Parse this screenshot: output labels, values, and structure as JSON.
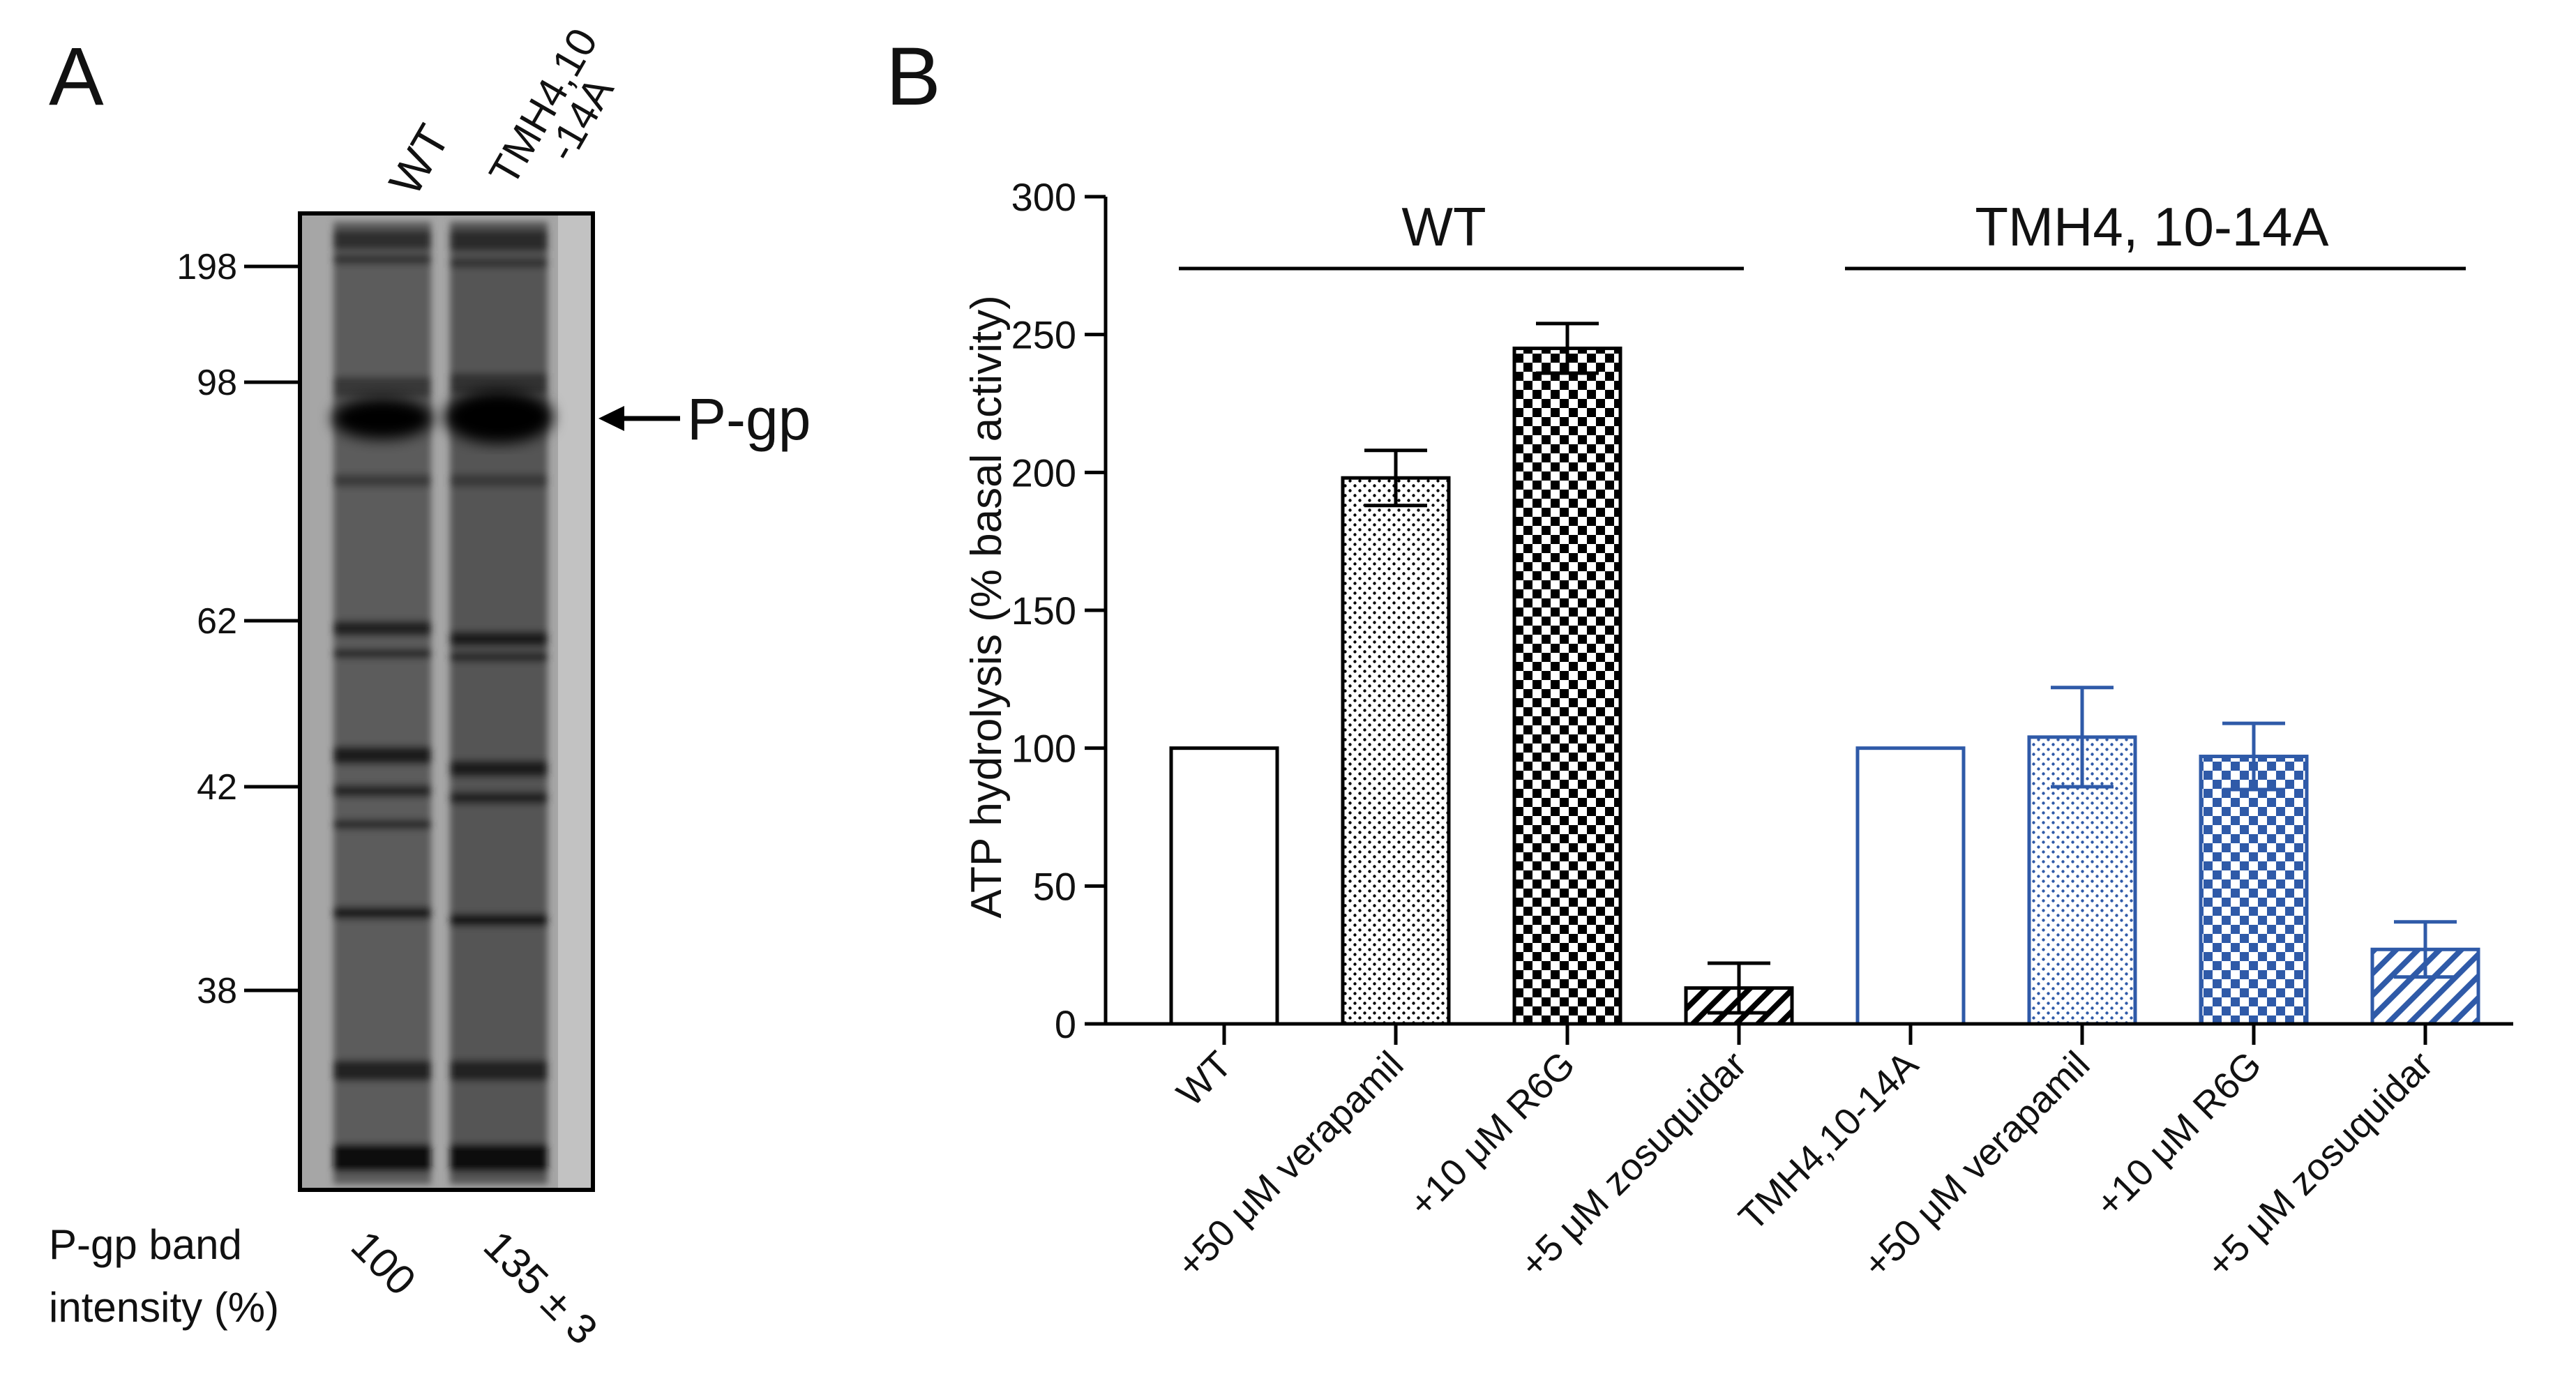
{
  "panel_a": {
    "letter": "A",
    "lanes": [
      "WT",
      "TMH4,10",
      "-14A"
    ],
    "markers": [
      "198",
      "98",
      "62",
      "42",
      "38"
    ],
    "arrow_label": "P-gp",
    "intensity_label_line1": "P-gp band",
    "intensity_label_line2": "intensity (%)",
    "intensity_values": [
      "100",
      "135 ± 3"
    ]
  },
  "panel_b": {
    "letter": "B",
    "group_labels": [
      "WT",
      "TMH4, 10-14A"
    ]
  },
  "colors": {
    "wt": "#000000",
    "mutant": "#2f5aa8"
  },
  "chart_data": {
    "type": "bar",
    "title": "",
    "ylabel": "ATP hydrolysis (% basal activity)",
    "xlabel": "",
    "ylim": [
      0,
      300
    ],
    "yticks": [
      0,
      50,
      100,
      150,
      200,
      250,
      300
    ],
    "categories": [
      "WT",
      "+50 μM verapamil",
      "+10 μM R6G",
      "+5 μM zosuquidar",
      "TMH4,10-14A",
      "+50 μM verapamil",
      "+10 μM R6G",
      "+5 μM zosuquidar"
    ],
    "values": [
      100,
      198,
      245,
      13,
      100,
      104,
      97,
      27
    ],
    "errors": [
      0,
      10,
      9,
      9,
      0,
      18,
      12,
      10
    ],
    "patterns": [
      "none",
      "dots",
      "checker",
      "hatch",
      "none",
      "dots",
      "checker",
      "hatch"
    ],
    "groups": [
      "wt",
      "wt",
      "wt",
      "wt",
      "mutant",
      "mutant",
      "mutant",
      "mutant"
    ]
  }
}
